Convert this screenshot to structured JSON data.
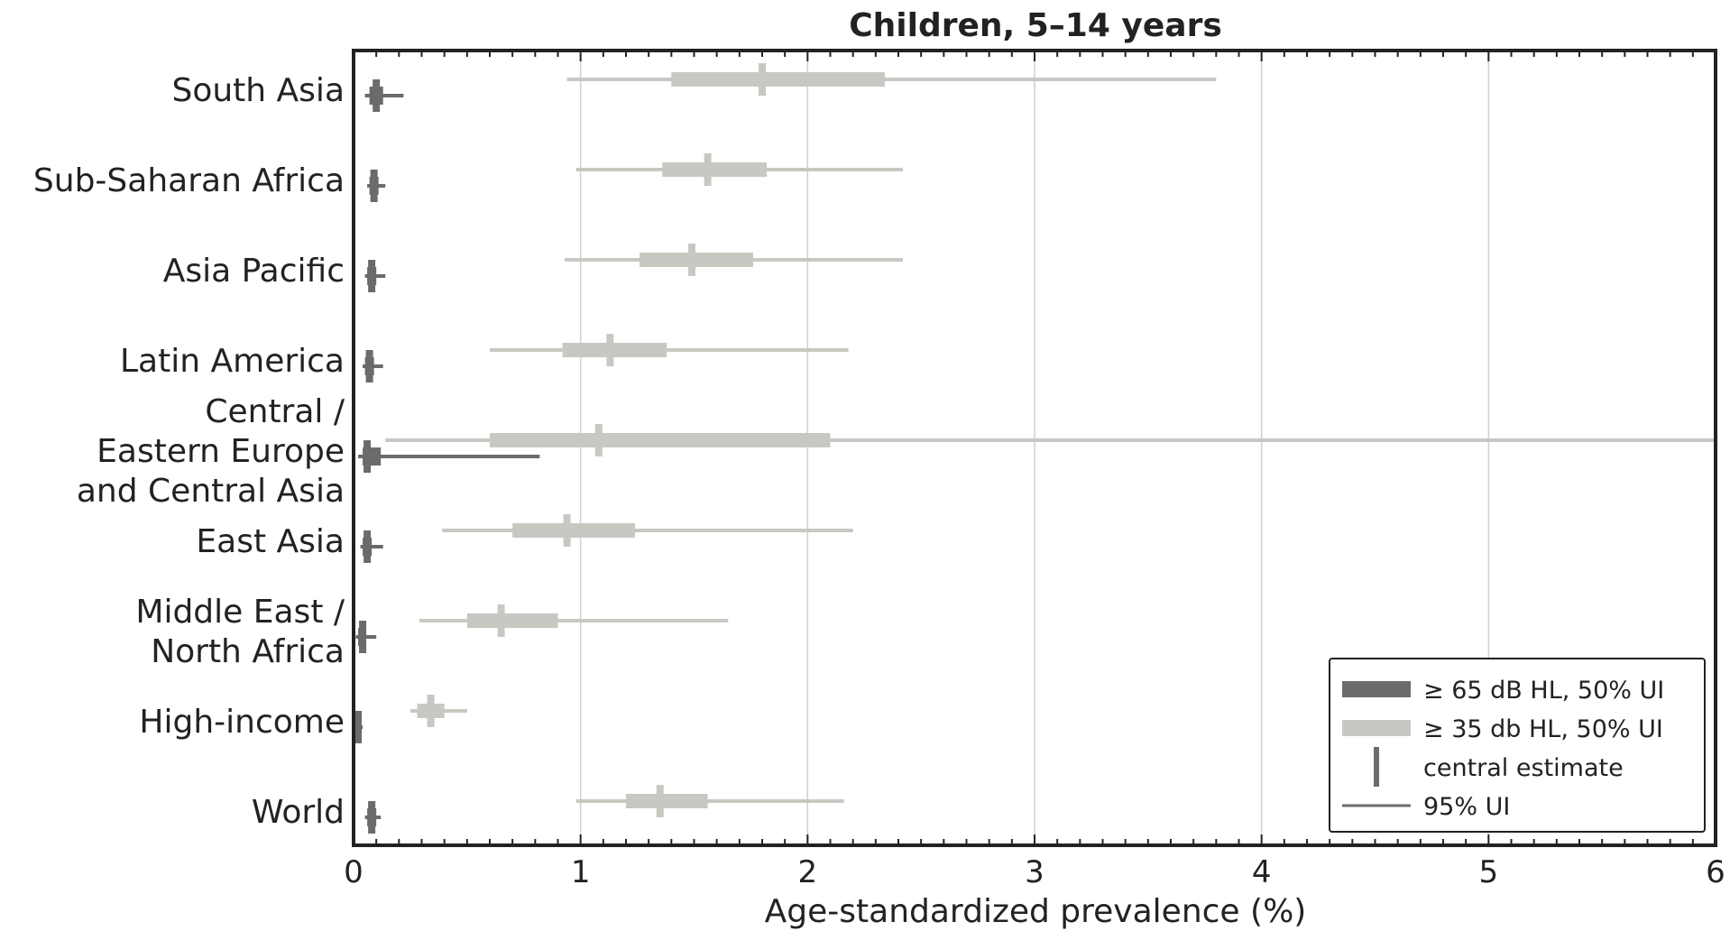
{
  "chart_data": {
    "type": "interval",
    "title": "Children, 5–14 years",
    "xlabel": "Age-standardized prevalence (%)",
    "ylabel": "",
    "xlim": [
      0,
      6
    ],
    "xticks": [
      "0",
      "1",
      "2",
      "3",
      "4",
      "5",
      "6"
    ],
    "grid": "vertical",
    "legend_position": "bottom-right",
    "categories": [
      "South Asia",
      "Sub-Saharan Africa",
      "Asia Pacific",
      "Latin America",
      "Central / Eastern Europe and Central Asia",
      "East Asia",
      "Middle East / North Africa",
      "High-income",
      "World"
    ],
    "category_lines": [
      [
        "South Asia"
      ],
      [
        "Sub-Saharan Africa"
      ],
      [
        "Asia Pacific"
      ],
      [
        "Latin America"
      ],
      [
        "Central /",
        "Eastern Europe",
        "and Central Asia"
      ],
      [
        "East Asia"
      ],
      [
        "Middle East /",
        "North Africa"
      ],
      [
        "High-income"
      ],
      [
        "World"
      ]
    ],
    "series": [
      {
        "name": "≥ 35 db HL",
        "color": "#c8c8c2",
        "central": [
          1.8,
          1.56,
          1.49,
          1.13,
          1.08,
          0.94,
          0.65,
          0.34,
          1.35
        ],
        "iqr_low": [
          1.4,
          1.36,
          1.26,
          0.92,
          0.6,
          0.7,
          0.5,
          0.28,
          1.2
        ],
        "iqr_high": [
          2.34,
          1.82,
          1.76,
          1.38,
          2.1,
          1.24,
          0.9,
          0.4,
          1.56
        ],
        "ui_low": [
          0.94,
          0.98,
          0.93,
          0.6,
          0.14,
          0.39,
          0.29,
          0.25,
          0.98
        ],
        "ui_high": [
          3.8,
          2.42,
          2.42,
          2.18,
          6.0,
          2.2,
          1.65,
          0.5,
          2.16
        ]
      },
      {
        "name": "≥ 65 dB HL",
        "color": "#6b6b6b",
        "central": [
          0.1,
          0.09,
          0.08,
          0.07,
          0.06,
          0.06,
          0.04,
          0.02,
          0.08
        ],
        "iqr_low": [
          0.07,
          0.07,
          0.06,
          0.05,
          0.04,
          0.04,
          0.02,
          0.01,
          0.06
        ],
        "iqr_high": [
          0.13,
          0.11,
          0.1,
          0.09,
          0.12,
          0.08,
          0.05,
          0.03,
          0.1
        ],
        "ui_low": [
          0.05,
          0.06,
          0.05,
          0.04,
          0.02,
          0.03,
          0.01,
          0.005,
          0.05
        ],
        "ui_high": [
          0.22,
          0.14,
          0.14,
          0.13,
          0.82,
          0.13,
          0.1,
          0.04,
          0.12
        ]
      }
    ],
    "legend": [
      {
        "label": "≥ 65 dB HL, 50% UI",
        "kind": "box",
        "color": "#6b6b6b"
      },
      {
        "label": "≥ 35 db HL, 50% UI",
        "kind": "box",
        "color": "#c8c8c2"
      },
      {
        "label": "central estimate",
        "kind": "vline",
        "color": "#6b6b6b"
      },
      {
        "label": "95% UI",
        "kind": "hline",
        "color": "#6b6b6b"
      }
    ]
  }
}
